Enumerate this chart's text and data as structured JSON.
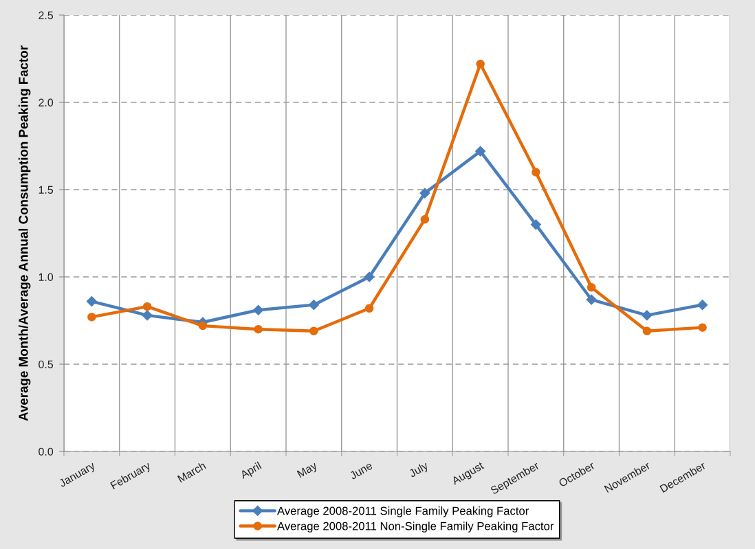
{
  "chart_data": {
    "type": "line",
    "ylabel": "Average Month/Average Annual Consumption Peaking Factor",
    "categories": [
      "January",
      "February",
      "March",
      "April",
      "May",
      "June",
      "July",
      "August",
      "September",
      "October",
      "November",
      "December"
    ],
    "series": [
      {
        "name": "Average 2008-2011 Single Family Peaking Factor",
        "color": "#4a7ebb",
        "marker": "diamond",
        "values": [
          0.86,
          0.78,
          0.74,
          0.81,
          0.84,
          1.0,
          1.48,
          1.72,
          1.3,
          0.87,
          0.78,
          0.84
        ]
      },
      {
        "name": "Average 2008-2011 Non-Single Family Peaking Factor",
        "color": "#e46c0a",
        "marker": "circle",
        "values": [
          0.77,
          0.83,
          0.72,
          0.7,
          0.69,
          0.82,
          1.33,
          2.22,
          1.6,
          0.94,
          0.69,
          0.71
        ]
      }
    ],
    "ylim": [
      0,
      2.5
    ],
    "yticks": [
      {
        "value": 0,
        "label": "0.0"
      },
      0.5,
      {
        "value": 1,
        "label": "1.0"
      },
      1.5,
      {
        "value": 2,
        "label": "2.0"
      },
      2.5
    ],
    "grid": true,
    "legend": "bottom",
    "line_style": "solid"
  }
}
